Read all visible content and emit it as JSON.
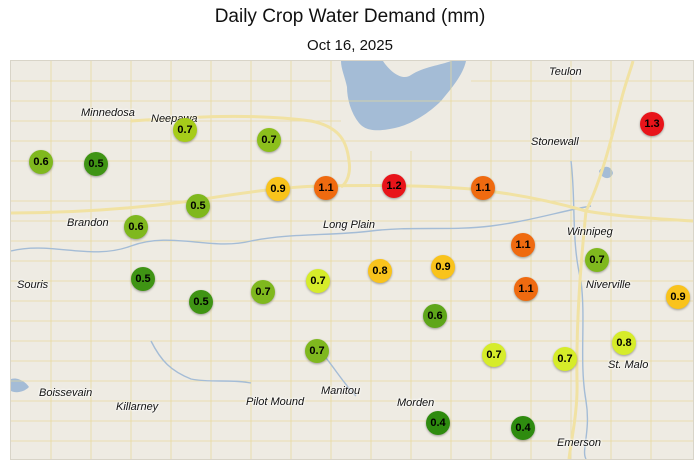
{
  "title": "Daily Crop Water Demand (mm)",
  "date": "Oct 16, 2025",
  "colors": {
    "0.4": "#2e8b0f",
    "0.5": "#4a9a17",
    "0.6": "#7fb81e",
    "0.7": "#a6cc1a",
    "0.7_light": "#d6ec2a",
    "0.8": "#f5c21a",
    "0.9": "#f9c31c",
    "1.1": "#ef6a10",
    "1.2": "#e8141a",
    "1.3": "#e8141a"
  },
  "towns": [
    {
      "name": "Teulon"
    },
    {
      "name": "Minnedosa"
    },
    {
      "name": "Neepawa"
    },
    {
      "name": "Stonewall"
    },
    {
      "name": "Winnipeg"
    },
    {
      "name": "Brandon"
    },
    {
      "name": "Long Plain"
    },
    {
      "name": "Souris"
    },
    {
      "name": "Niverville"
    },
    {
      "name": "St. Malo"
    },
    {
      "name": "Boissevain"
    },
    {
      "name": "Killarney"
    },
    {
      "name": "Pilot Mound"
    },
    {
      "name": "Manitou"
    },
    {
      "name": "Morden"
    },
    {
      "name": "Emerson"
    }
  ],
  "stations": [
    {
      "value": "0.7",
      "color": "#a6cc1a"
    },
    {
      "value": "0.6",
      "color": "#7fb81e"
    },
    {
      "value": "0.5",
      "color": "#3f9414"
    },
    {
      "value": "0.7",
      "color": "#8cbf1c"
    },
    {
      "value": "1.3",
      "color": "#e8141a"
    },
    {
      "value": "0.9",
      "color": "#f9c31c"
    },
    {
      "value": "1.1",
      "color": "#ef6a10"
    },
    {
      "value": "1.2",
      "color": "#e8141a"
    },
    {
      "value": "1.1",
      "color": "#ef6a10"
    },
    {
      "value": "0.5",
      "color": "#7fb81e"
    },
    {
      "value": "0.6",
      "color": "#7fb81e"
    },
    {
      "value": "1.1",
      "color": "#ef6a10"
    },
    {
      "value": "0.7",
      "color": "#7fb81e"
    },
    {
      "value": "0.5",
      "color": "#3f9414"
    },
    {
      "value": "0.5",
      "color": "#3f9414"
    },
    {
      "value": "0.7",
      "color": "#7fb81e"
    },
    {
      "value": "0.7",
      "color": "#d6ec2a"
    },
    {
      "value": "0.8",
      "color": "#f9c31c"
    },
    {
      "value": "0.9",
      "color": "#f9c31c"
    },
    {
      "value": "1.1",
      "color": "#ef6a10"
    },
    {
      "value": "0.9",
      "color": "#f9c31c"
    },
    {
      "value": "0.6",
      "color": "#5ea61a"
    },
    {
      "value": "0.7",
      "color": "#7fb81e"
    },
    {
      "value": "0.7",
      "color": "#d6ec2a"
    },
    {
      "value": "0.7",
      "color": "#d6ec2a"
    },
    {
      "value": "0.8",
      "color": "#d6ec2a"
    },
    {
      "value": "0.4",
      "color": "#2e8b0f"
    },
    {
      "value": "0.4",
      "color": "#2e8b0f"
    }
  ]
}
